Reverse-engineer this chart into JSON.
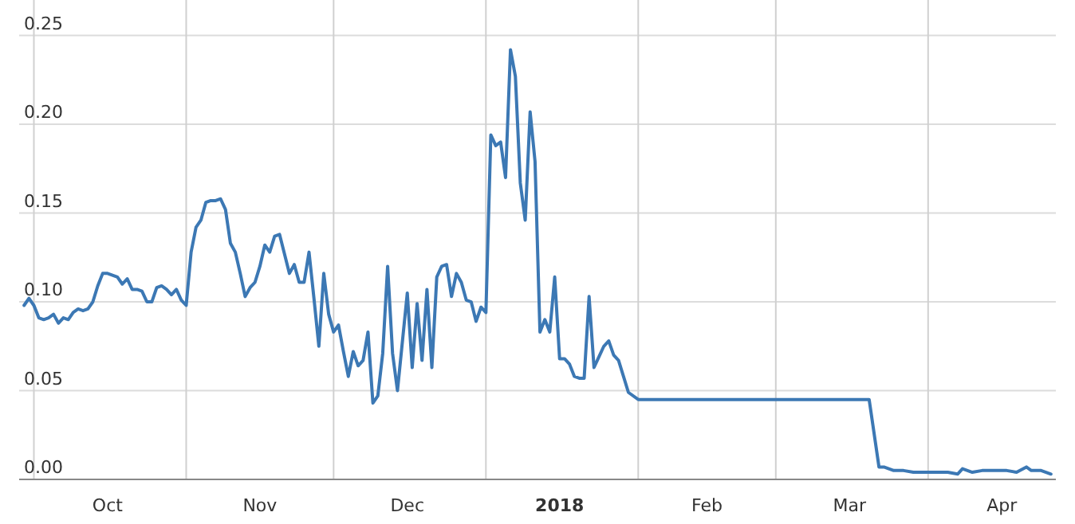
{
  "chart_data": {
    "type": "line",
    "xlim": [
      "2017-09-28",
      "2018-04-27"
    ],
    "ylim": [
      0,
      0.27
    ],
    "yticks": [
      {
        "value": 0,
        "label": "0.00"
      },
      {
        "value": 0.05,
        "label": "0.05"
      },
      {
        "value": 0.1,
        "label": "0.10"
      },
      {
        "value": 0.15,
        "label": "0.15"
      },
      {
        "value": 0.2,
        "label": "0.20"
      },
      {
        "value": 0.25,
        "label": "0.25"
      }
    ],
    "xticks": [
      {
        "value": "2017-10-01",
        "label": null
      },
      {
        "value": "2017-10-16",
        "label": "Oct"
      },
      {
        "value": "2017-11-01",
        "label": null
      },
      {
        "value": "2017-11-16",
        "label": "Nov"
      },
      {
        "value": "2017-12-01",
        "label": null
      },
      {
        "value": "2017-12-16",
        "label": "Dec"
      },
      {
        "value": "2018-01-01",
        "label": null
      },
      {
        "value": "2018-01-16",
        "label": "2018"
      },
      {
        "value": "2018-02-01",
        "label": null
      },
      {
        "value": "2018-02-15",
        "label": "Feb"
      },
      {
        "value": "2018-03-01",
        "label": null
      },
      {
        "value": "2018-03-16",
        "label": "Mar"
      },
      {
        "value": "2018-04-01",
        "label": null
      },
      {
        "value": "2018-04-16",
        "label": "Apr"
      }
    ],
    "grid": true,
    "marker": "none",
    "line_style": "solid",
    "series": [
      {
        "color": "#3c78b4",
        "x": [
          "2017-09-29",
          "2017-09-30",
          "2017-10-01",
          "2017-10-02",
          "2017-10-03",
          "2017-10-04",
          "2017-10-05",
          "2017-10-06",
          "2017-10-07",
          "2017-10-08",
          "2017-10-09",
          "2017-10-10",
          "2017-10-11",
          "2017-10-12",
          "2017-10-13",
          "2017-10-14",
          "2017-10-15",
          "2017-10-16",
          "2017-10-17",
          "2017-10-18",
          "2017-10-19",
          "2017-10-20",
          "2017-10-21",
          "2017-10-22",
          "2017-10-23",
          "2017-10-24",
          "2017-10-25",
          "2017-10-26",
          "2017-10-27",
          "2017-10-28",
          "2017-10-29",
          "2017-10-30",
          "2017-10-31",
          "2017-11-01",
          "2017-11-02",
          "2017-11-03",
          "2017-11-04",
          "2017-11-05",
          "2017-11-06",
          "2017-11-07",
          "2017-11-08",
          "2017-11-09",
          "2017-11-10",
          "2017-11-11",
          "2017-11-12",
          "2017-11-13",
          "2017-11-14",
          "2017-11-15",
          "2017-11-16",
          "2017-11-17",
          "2017-11-18",
          "2017-11-19",
          "2017-11-20",
          "2017-11-21",
          "2017-11-22",
          "2017-11-23",
          "2017-11-24",
          "2017-11-25",
          "2017-11-26",
          "2017-11-27",
          "2017-11-28",
          "2017-11-29",
          "2017-11-30",
          "2017-12-01",
          "2017-12-02",
          "2017-12-03",
          "2017-12-04",
          "2017-12-05",
          "2017-12-06",
          "2017-12-07",
          "2017-12-08",
          "2017-12-09",
          "2017-12-10",
          "2017-12-11",
          "2017-12-12",
          "2017-12-13",
          "2017-12-14",
          "2017-12-16",
          "2017-12-17",
          "2017-12-18",
          "2017-12-19",
          "2017-12-20",
          "2017-12-21",
          "2017-12-22",
          "2017-12-23",
          "2017-12-24",
          "2017-12-25",
          "2017-12-26",
          "2017-12-27",
          "2017-12-28",
          "2017-12-29",
          "2017-12-30",
          "2017-12-31",
          "2018-01-01",
          "2018-01-02",
          "2018-01-03",
          "2018-01-04",
          "2018-01-05",
          "2018-01-06",
          "2018-01-07",
          "2018-01-08",
          "2018-01-09",
          "2018-01-10",
          "2018-01-11",
          "2018-01-12",
          "2018-01-13",
          "2018-01-14",
          "2018-01-15",
          "2018-01-16",
          "2018-01-17",
          "2018-01-18",
          "2018-01-19",
          "2018-01-20",
          "2018-01-21",
          "2018-01-22",
          "2018-01-23",
          "2018-01-24",
          "2018-01-25",
          "2018-01-26",
          "2018-01-27",
          "2018-01-28",
          "2018-01-29",
          "2018-01-30",
          "2018-02-01",
          "2018-03-20",
          "2018-03-22",
          "2018-03-23",
          "2018-03-25",
          "2018-03-27",
          "2018-03-29",
          "2018-04-03",
          "2018-04-05",
          "2018-04-07",
          "2018-04-08",
          "2018-04-10",
          "2018-04-12",
          "2018-04-15",
          "2018-04-17",
          "2018-04-19",
          "2018-04-21",
          "2018-04-22",
          "2018-04-24",
          "2018-04-26"
        ],
        "values": [
          0.098,
          0.102,
          0.098,
          0.091,
          0.09,
          0.091,
          0.093,
          0.088,
          0.091,
          0.09,
          0.094,
          0.096,
          0.095,
          0.096,
          0.1,
          0.109,
          0.116,
          0.116,
          0.115,
          0.114,
          0.11,
          0.113,
          0.107,
          0.107,
          0.106,
          0.1,
          0.1,
          0.108,
          0.109,
          0.107,
          0.104,
          0.107,
          0.101,
          0.098,
          0.128,
          0.142,
          0.146,
          0.156,
          0.157,
          0.157,
          0.158,
          0.152,
          0.133,
          0.128,
          0.116,
          0.103,
          0.108,
          0.111,
          0.12,
          0.132,
          0.128,
          0.137,
          0.138,
          0.127,
          0.116,
          0.121,
          0.111,
          0.111,
          0.128,
          0.102,
          0.075,
          0.116,
          0.093,
          0.083,
          0.087,
          0.072,
          0.058,
          0.072,
          0.064,
          0.067,
          0.083,
          0.043,
          0.047,
          0.071,
          0.12,
          0.071,
          0.05,
          0.105,
          0.063,
          0.099,
          0.067,
          0.107,
          0.063,
          0.114,
          0.12,
          0.121,
          0.103,
          0.116,
          0.111,
          0.101,
          0.1,
          0.089,
          0.097,
          0.094,
          0.194,
          0.188,
          0.19,
          0.17,
          0.242,
          0.227,
          0.167,
          0.146,
          0.207,
          0.179,
          0.083,
          0.09,
          0.083,
          0.114,
          0.068,
          0.068,
          0.065,
          0.058,
          0.057,
          0.057,
          0.103,
          0.063,
          0.069,
          0.075,
          0.078,
          0.07,
          0.067,
          0.058,
          0.049,
          0.045,
          0.045,
          0.007,
          0.007,
          0.005,
          0.005,
          0.004,
          0.004,
          0.004,
          0.003,
          0.006,
          0.004,
          0.005,
          0.005,
          0.005,
          0.004,
          0.007,
          0.005,
          0.005,
          0.003
        ]
      }
    ]
  }
}
